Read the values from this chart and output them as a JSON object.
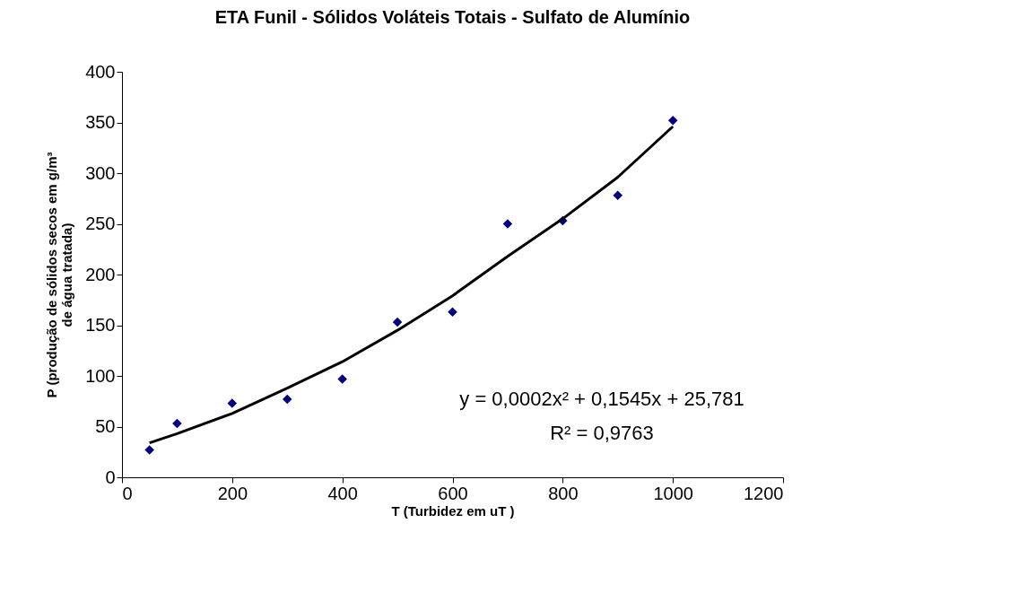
{
  "chart_data": {
    "type": "scatter",
    "title": "ETA Funil - Sólidos Voláteis Totais - Sulfato de Alumínio",
    "xlabel": "T (Turbidez em uT )",
    "ylabel": [
      "P (produção de sólidos secos em g/m³",
      "de água tratada)"
    ],
    "x": [
      50,
      100,
      200,
      300,
      400,
      500,
      600,
      700,
      800,
      900,
      1000
    ],
    "series": [
      {
        "color": "#000080",
        "marker": "diamond",
        "values": [
          27,
          53,
          73,
          77,
          97,
          153,
          163,
          250,
          253,
          278,
          352
        ]
      },
      {
        "type": "line",
        "color": "#000000",
        "marker": "none",
        "line_style": "solid",
        "x": [
          50,
          100,
          200,
          300,
          400,
          500,
          600,
          700,
          800,
          900,
          1000
        ],
        "values": [
          34,
          43,
          63,
          88,
          114,
          145,
          179,
          218,
          255,
          296,
          346
        ]
      }
    ],
    "xlim": [
      0,
      1200
    ],
    "xticks": [
      0,
      200,
      400,
      600,
      800,
      1000,
      1200
    ],
    "ylim": [
      0,
      400
    ],
    "yticks": [
      0,
      50,
      100,
      150,
      200,
      250,
      300,
      350,
      400
    ],
    "grid": false,
    "legend": false,
    "annotations": [
      "y = 0,0002x² + 0,1545x + 25,781",
      "R² = 0,9763"
    ]
  }
}
